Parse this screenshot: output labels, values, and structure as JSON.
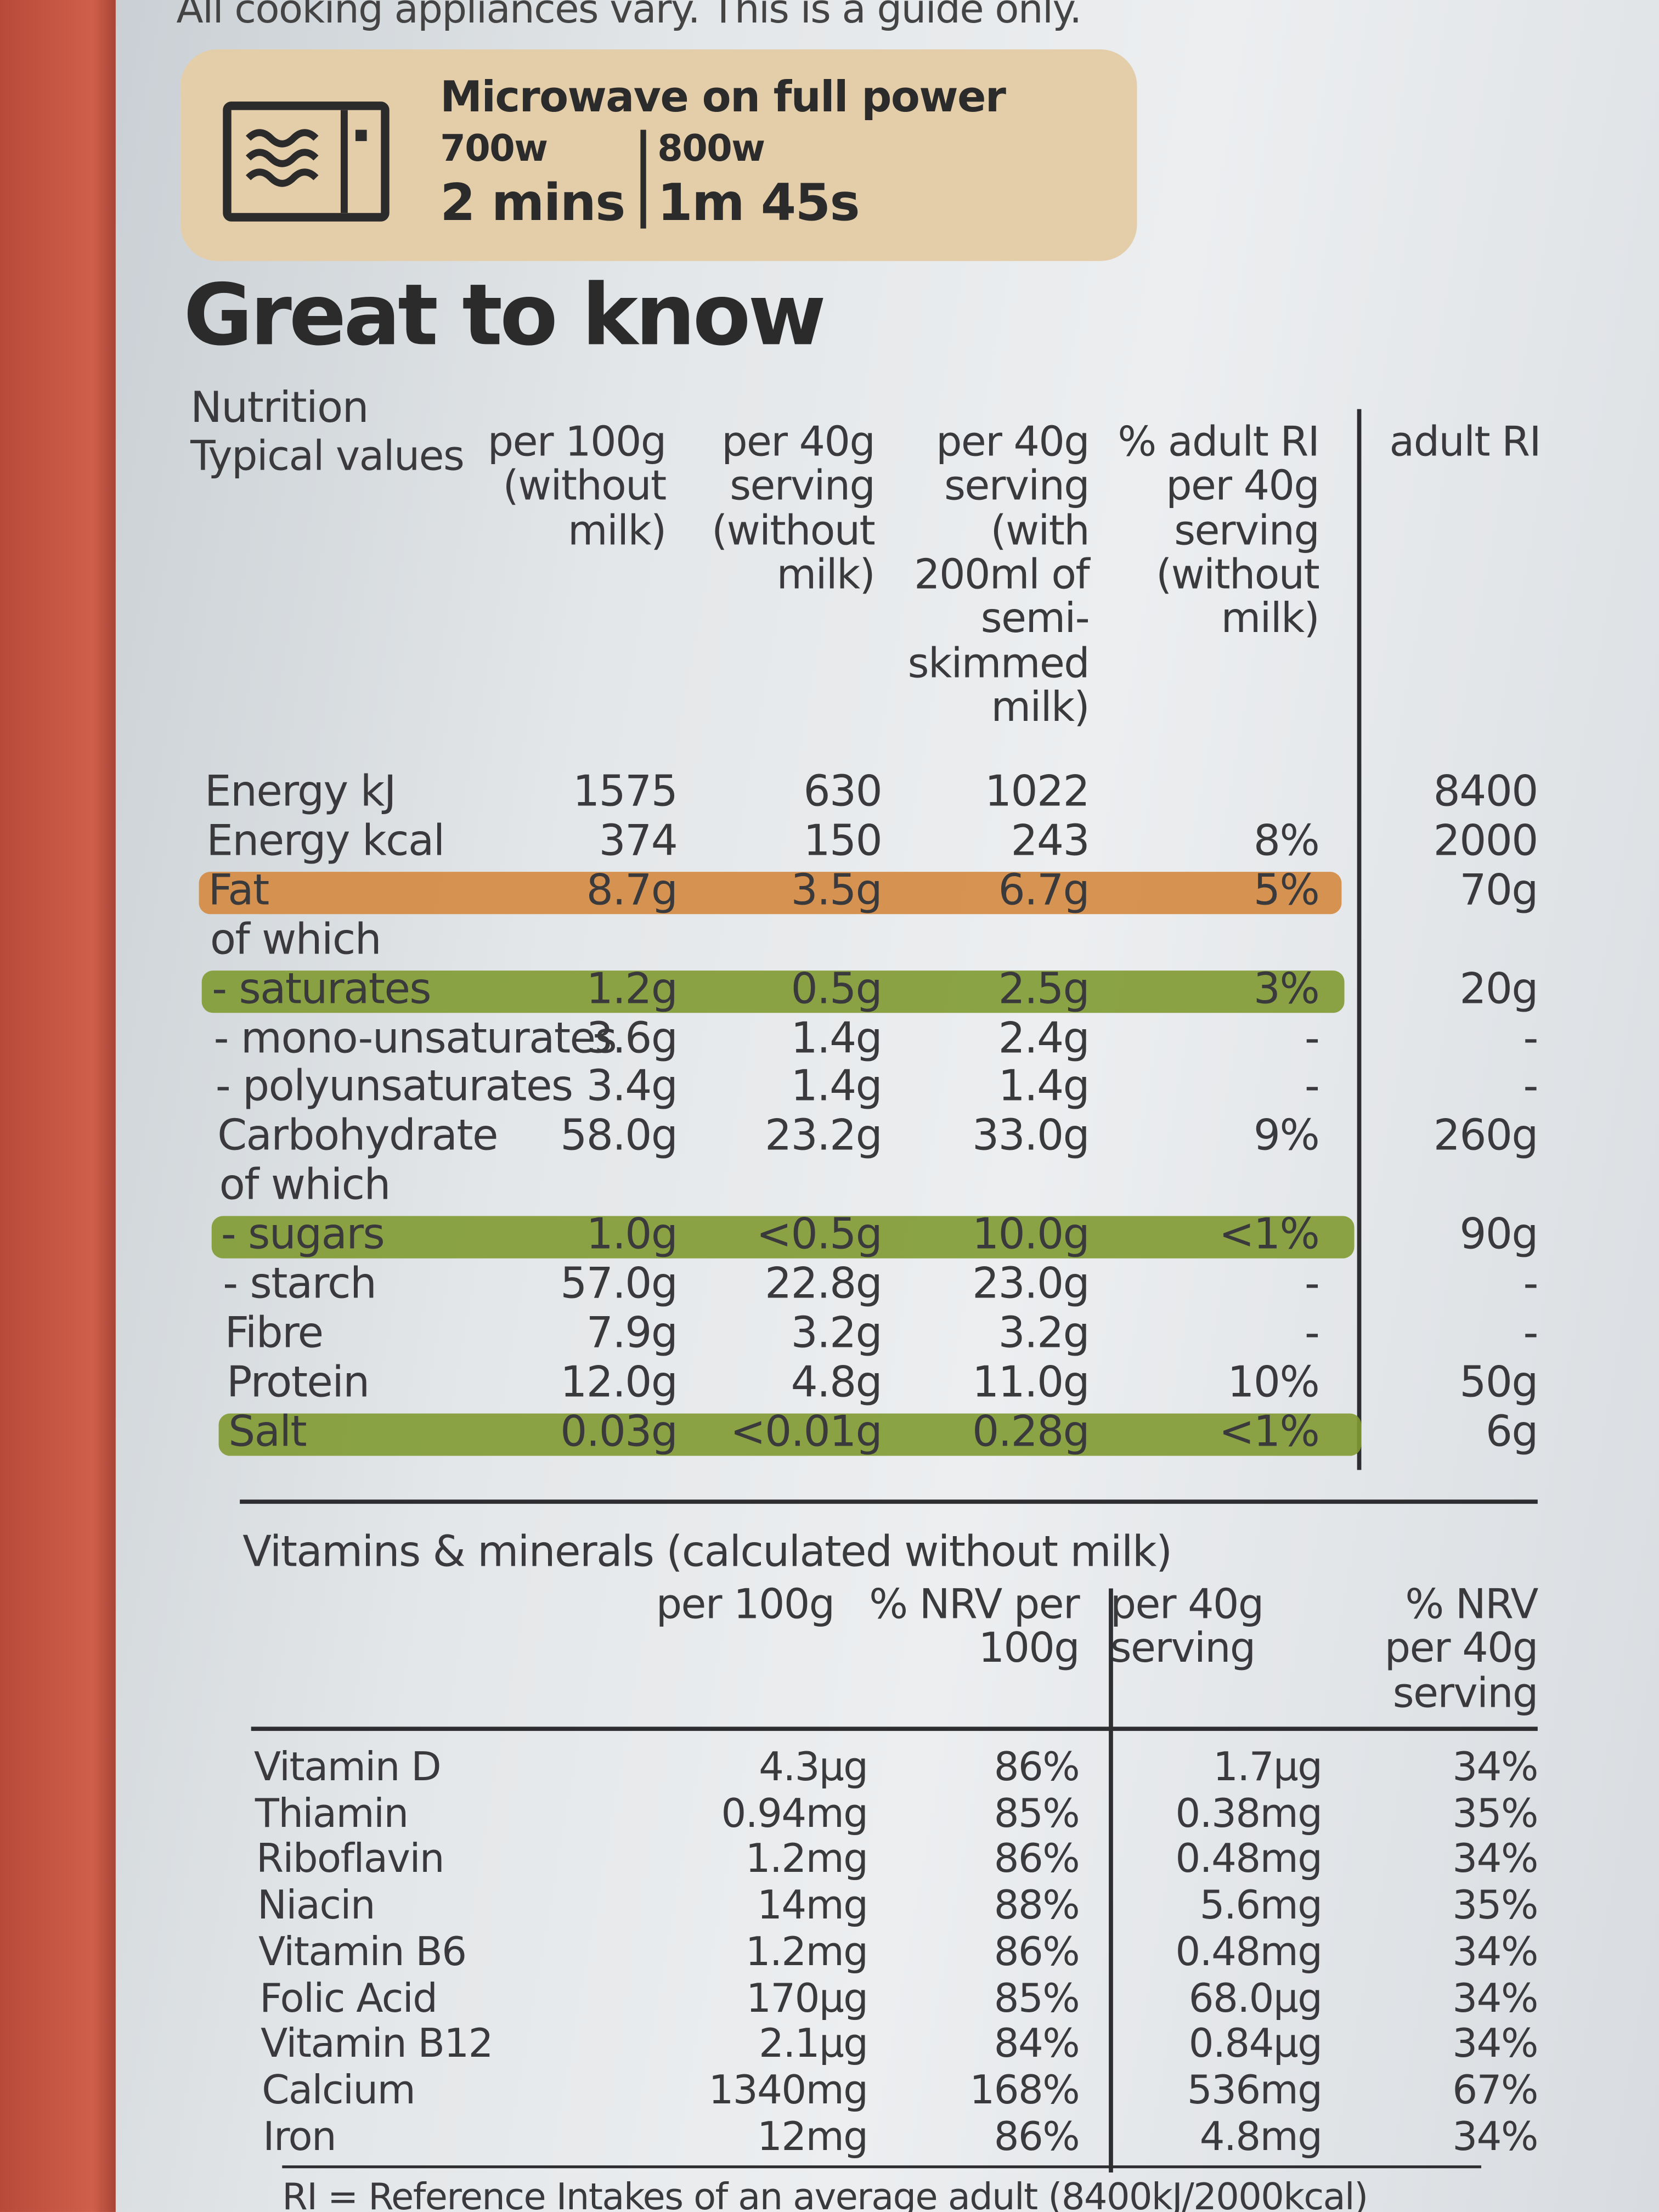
{
  "cooking_note": "All cooking appliances vary. This is a guide only.",
  "microwave": {
    "title": "Microwave on full power",
    "columns": [
      {
        "power": "700w",
        "time": "2 mins"
      },
      {
        "power": "800w",
        "time": "1m 45s"
      }
    ]
  },
  "heading": "Great to know",
  "nutrition": {
    "title": "Nutrition",
    "headers": [
      "Typical values",
      "per 100g (without milk)",
      "per 40g serving (without milk)",
      "per 40g serving (with 200ml of semi-skimmed milk)",
      "% adult RI per 40g serving (without milk)",
      "adult RI"
    ],
    "rows": [
      {
        "cells": [
          "Energy kJ",
          "1575",
          "630",
          "1022",
          null,
          "8400"
        ]
      },
      {
        "cells": [
          "Energy kcal",
          "374",
          "150",
          "243",
          "8%",
          "2000"
        ]
      },
      {
        "cells": [
          "Fat",
          "8.7g",
          "3.5g",
          "6.7g",
          "5%",
          "70g"
        ],
        "highlight": "#d4883f"
      },
      {
        "cells": [
          "of which",
          null,
          null,
          null,
          null,
          null
        ]
      },
      {
        "cells": [
          "- saturates",
          "1.2g",
          "0.5g",
          "2.5g",
          "3%",
          "20g"
        ],
        "highlight": "#7f9a31"
      },
      {
        "cells": [
          "- mono-unsaturates",
          "3.6g",
          "1.4g",
          "2.4g",
          "-",
          "-"
        ]
      },
      {
        "cells": [
          "- polyunsaturates",
          "3.4g",
          "1.4g",
          "1.4g",
          "-",
          "-"
        ]
      },
      {
        "cells": [
          "Carbohydrate",
          "58.0g",
          "23.2g",
          "33.0g",
          "9%",
          "260g"
        ]
      },
      {
        "cells": [
          "of which",
          null,
          null,
          null,
          null,
          null
        ]
      },
      {
        "cells": [
          "- sugars",
          "1.0g",
          "<0.5g",
          "10.0g",
          "<1%",
          "90g"
        ],
        "highlight": "#7f9a31"
      },
      {
        "cells": [
          "- starch",
          "57.0g",
          "22.8g",
          "23.0g",
          "-",
          "-"
        ]
      },
      {
        "cells": [
          "Fibre",
          "7.9g",
          "3.2g",
          "3.2g",
          "-",
          "-"
        ]
      },
      {
        "cells": [
          "Protein",
          "12.0g",
          "4.8g",
          "11.0g",
          "10%",
          "50g"
        ]
      },
      {
        "cells": [
          "Salt",
          "0.03g",
          "<0.01g",
          "0.28g",
          "<1%",
          "6g"
        ],
        "highlight": "#7f9a31"
      }
    ]
  },
  "vitamins": {
    "title": "Vitamins & minerals (calculated without milk)",
    "headers": [
      "per 100g",
      "% NRV per 100g",
      "per 40g serving",
      "% NRV per 40g serving"
    ],
    "rows": [
      [
        "Vitamin D",
        "4.3µg",
        "86%",
        "1.7µg",
        "34%"
      ],
      [
        "Thiamin",
        "0.94mg",
        "85%",
        "0.38mg",
        "35%"
      ],
      [
        "Riboflavin",
        "1.2mg",
        "86%",
        "0.48mg",
        "34%"
      ],
      [
        "Niacin",
        "14mg",
        "88%",
        "5.6mg",
        "35%"
      ],
      [
        "Vitamin B6",
        "1.2mg",
        "86%",
        "0.48mg",
        "34%"
      ],
      [
        "Folic Acid",
        "170µg",
        "85%",
        "68.0µg",
        "34%"
      ],
      [
        "Vitamin B12",
        "2.1µg",
        "84%",
        "0.84µg",
        "34%"
      ],
      [
        "Calcium",
        "1340mg",
        "168%",
        "536mg",
        "67%"
      ],
      [
        "Iron",
        "12mg",
        "86%",
        "4.8mg",
        "34%"
      ]
    ]
  },
  "footnote": "RI = Reference Intakes of an average adult (8400kJ/2000kcal)"
}
